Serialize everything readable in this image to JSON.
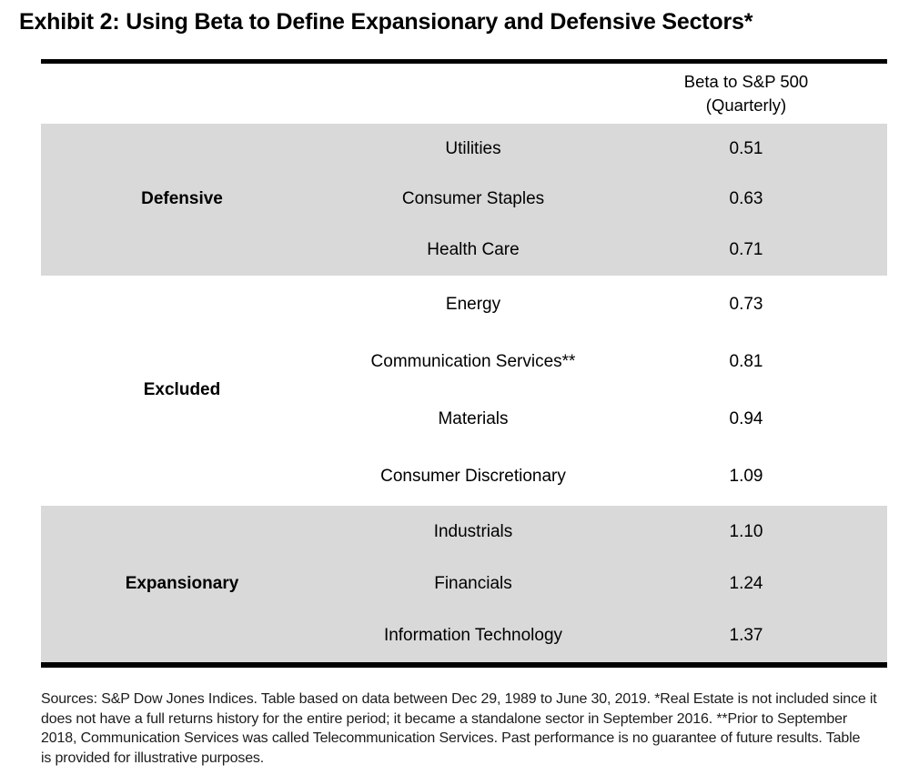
{
  "title": "Exhibit 2: Using Beta to Define Expansionary and Defensive Sectors*",
  "table": {
    "header_line1": "Beta to S&P 500",
    "header_line2": "(Quarterly)",
    "sections": [
      {
        "group": "Defensive",
        "shaded": true,
        "rows": [
          {
            "sector": "Utilities",
            "beta": "0.51"
          },
          {
            "sector": "Consumer Staples",
            "beta": "0.63"
          },
          {
            "sector": "Health Care",
            "beta": "0.71"
          }
        ]
      },
      {
        "group": "Excluded",
        "shaded": false,
        "rows": [
          {
            "sector": "Energy",
            "beta": "0.73"
          },
          {
            "sector": "Communication Services**",
            "beta": "0.81"
          },
          {
            "sector": "Materials",
            "beta": "0.94"
          },
          {
            "sector": "Consumer Discretionary",
            "beta": "1.09"
          }
        ]
      },
      {
        "group": "Expansionary",
        "shaded": true,
        "rows": [
          {
            "sector": "Industrials",
            "beta": "1.10"
          },
          {
            "sector": "Financials",
            "beta": "1.24"
          },
          {
            "sector": "Information Technology",
            "beta": "1.37"
          }
        ]
      }
    ]
  },
  "footnote": {
    "lines": [
      "Sources: S&P Dow Jones Indices.  Table based on data between Dec 29, 1989 to June 30, 2019. *Real Estate is not included since it",
      "does not have a full returns history for the entire period; it became a standalone sector in September 2016.  **Prior to September",
      "2018, Communication Services was called Telecommunication Services.  Past performance is no guarantee of future results.  Table",
      "is provided for illustrative purposes."
    ]
  },
  "colors": {
    "shaded_band": "#d9d9d9",
    "rule": "#000000",
    "text": "#000000"
  },
  "chart_data": {
    "type": "table",
    "title": "Exhibit 2: Using Beta to Define Expansionary and Defensive Sectors*",
    "columns": [
      "Group",
      "Sector",
      "Beta to S&P 500 (Quarterly)"
    ],
    "rows": [
      [
        "Defensive",
        "Utilities",
        0.51
      ],
      [
        "Defensive",
        "Consumer Staples",
        0.63
      ],
      [
        "Defensive",
        "Health Care",
        0.71
      ],
      [
        "Excluded",
        "Energy",
        0.73
      ],
      [
        "Excluded",
        "Communication Services**",
        0.81
      ],
      [
        "Excluded",
        "Materials",
        0.94
      ],
      [
        "Excluded",
        "Consumer Discretionary",
        1.09
      ],
      [
        "Expansionary",
        "Industrials",
        1.1
      ],
      [
        "Expansionary",
        "Financials",
        1.24
      ],
      [
        "Expansionary",
        "Information Technology",
        1.37
      ]
    ],
    "notes": "Shaded bands group Defensive and Expansionary sectors; Excluded group unshaded."
  }
}
